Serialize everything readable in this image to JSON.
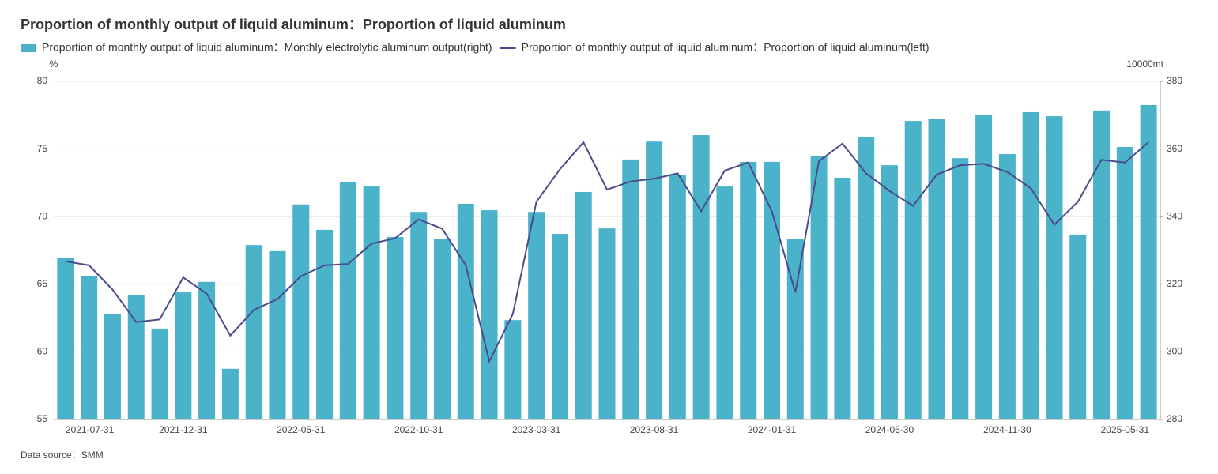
{
  "chart_data": {
    "type": "bar",
    "title": "Proportion of monthly output of liquid aluminum：Proportion of liquid aluminum",
    "y_unit": "%",
    "y2_unit": "10000mt",
    "source": "Data source：SMM",
    "categories": [
      "2021-07-31",
      null,
      null,
      null,
      null,
      "2021-12-31",
      null,
      null,
      null,
      null,
      "2022-05-31",
      null,
      null,
      null,
      null,
      "2022-10-31",
      null,
      null,
      null,
      null,
      "2023-03-31",
      null,
      null,
      null,
      null,
      "2023-08-31",
      null,
      null,
      null,
      null,
      "2024-01-31",
      null,
      null,
      null,
      null,
      "2024-06-30",
      null,
      null,
      null,
      null,
      "2024-11-30",
      null,
      null,
      null,
      null,
      "2025-05-31",
      null
    ],
    "ylim": [
      55,
      80
    ],
    "yticks": [
      55,
      60,
      65,
      70,
      75,
      80
    ],
    "y2lim": [
      280,
      380
    ],
    "y2ticks": [
      280,
      300,
      320,
      340,
      360,
      380
    ],
    "grid": true,
    "series": [
      {
        "name": "Proportion of monthly output of liquid aluminum：Monthly electrolytic aluminum output(right)",
        "type": "bar",
        "axis": "y2",
        "color": "#4ab3c9",
        "values": [
          327.9,
          322.5,
          311.3,
          316.7,
          306.9,
          317.6,
          320.7,
          295,
          331.6,
          329.8,
          343.6,
          336.1,
          350.1,
          348.9,
          334,
          341.4,
          333.5,
          343.8,
          341.9,
          309.4,
          341.4,
          334.9,
          347.3,
          336.5,
          356.9,
          362.2,
          352.4,
          364.1,
          348.9,
          356.2,
          356.2,
          333.5,
          358,
          351.5,
          363.6,
          355.2,
          368.3,
          368.8,
          357.3,
          370.2,
          358.5,
          370.9,
          369.7,
          334.7,
          371.4,
          360.6,
          373
        ]
      },
      {
        "name": "Proportion of monthly output of liquid aluminum：Proportion of liquid aluminum(left)",
        "type": "line",
        "axis": "y",
        "color": "#4b4a8a",
        "values": [
          66.7,
          66.4,
          64.6,
          62.2,
          62.4,
          65.5,
          64.3,
          61.2,
          63.1,
          63.9,
          65.6,
          66.4,
          66.5,
          68.0,
          68.4,
          69.8,
          69.1,
          66.4,
          59.3,
          62.8,
          71.1,
          73.5,
          75.5,
          72.0,
          72.6,
          72.8,
          73.2,
          70.4,
          73.4,
          74.0,
          70.4,
          64.4,
          74.1,
          75.4,
          73.2,
          71.9,
          70.8,
          73.1,
          73.8,
          73.9,
          73.3,
          72.1,
          69.4,
          71.1,
          74.2,
          74.0,
          75.5
        ]
      }
    ]
  }
}
